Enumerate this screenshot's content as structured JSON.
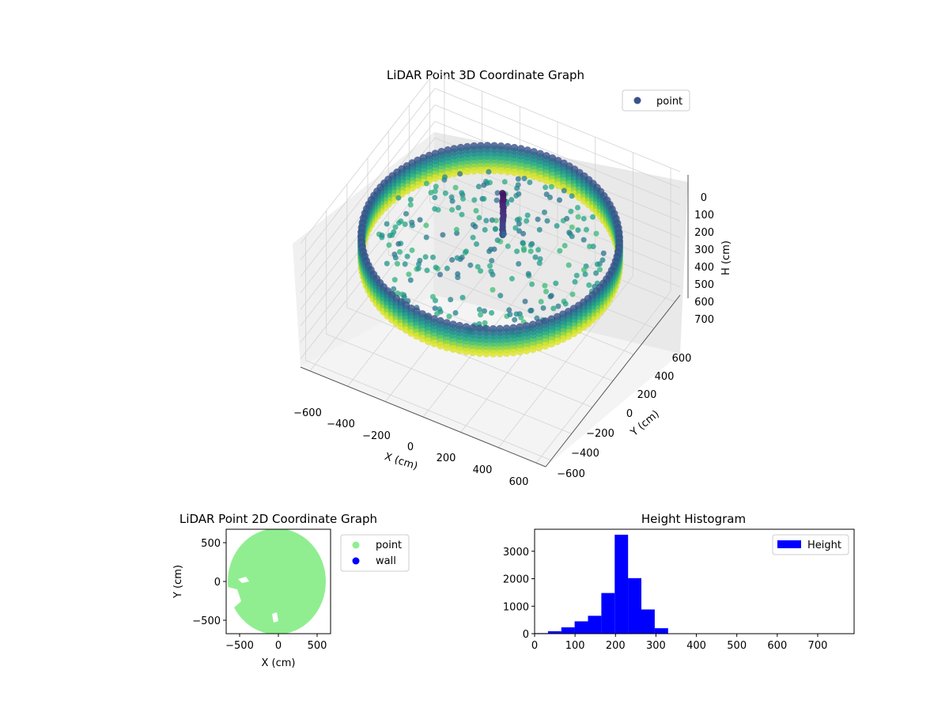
{
  "chart_data": [
    {
      "type": "scatter3d",
      "title": "LiDAR Point 3D Coordinate Graph",
      "xlabel": "X (cm)",
      "ylabel": "Y (cm)",
      "zlabel": "H (cm)",
      "x_ticks": [
        "−600",
        "−400",
        "−200",
        "0",
        "200",
        "400",
        "600"
      ],
      "y_ticks": [
        "−600",
        "−400",
        "−200",
        "0",
        "200",
        "400",
        "600"
      ],
      "z_ticks": [
        "0",
        "100",
        "200",
        "300",
        "400",
        "500",
        "600",
        "700"
      ],
      "xlim": [
        -650,
        650
      ],
      "ylim": [
        -650,
        650
      ],
      "zlim": [
        0,
        750
      ],
      "z_inverted": true,
      "colormap": "viridis",
      "legend": {
        "placement": "top-right",
        "entries": [
          {
            "label": "point",
            "color": "#3b528b"
          }
        ]
      },
      "series": [
        {
          "name": "point",
          "shape": "ring",
          "radius": 600,
          "z_range": [
            180,
            330
          ]
        }
      ],
      "grid": true
    },
    {
      "type": "scatter",
      "title": "LiDAR Point 2D Coordinate Graph",
      "xlabel": "X (cm)",
      "ylabel": "Y (cm)",
      "x_ticks": [
        "−500",
        "0",
        "500"
      ],
      "y_ticks": [
        "500",
        "0",
        "−500"
      ],
      "xlim": [
        -680,
        680
      ],
      "ylim": [
        -690,
        690
      ],
      "legend": {
        "placement": "outside-right",
        "entries": [
          {
            "label": "point",
            "color": "#90ee90"
          },
          {
            "label": "wall",
            "color": "#0000ff"
          }
        ]
      },
      "series": [
        {
          "name": "point",
          "color": "#90ee90",
          "shape": "disk",
          "center": [
            0,
            0
          ],
          "radius": 620
        }
      ]
    },
    {
      "type": "bar",
      "title": "Height Histogram",
      "xlabel": "",
      "ylabel": "",
      "x_ticks": [
        "0",
        "100",
        "200",
        "300",
        "400",
        "500",
        "600",
        "700"
      ],
      "y_ticks": [
        "0",
        "1000",
        "2000",
        "3000"
      ],
      "xlim": [
        0,
        790
      ],
      "ylim": [
        0,
        3800
      ],
      "bin_edges": [
        0,
        33,
        66,
        99,
        132,
        165,
        198,
        231,
        264,
        297,
        330
      ],
      "values": [
        20,
        90,
        230,
        450,
        650,
        1480,
        3600,
        2020,
        880,
        200
      ],
      "color": "#0000ff",
      "legend": {
        "placement": "top-right",
        "entries": [
          {
            "label": "Height",
            "color": "#0000ff"
          }
        ]
      }
    }
  ]
}
